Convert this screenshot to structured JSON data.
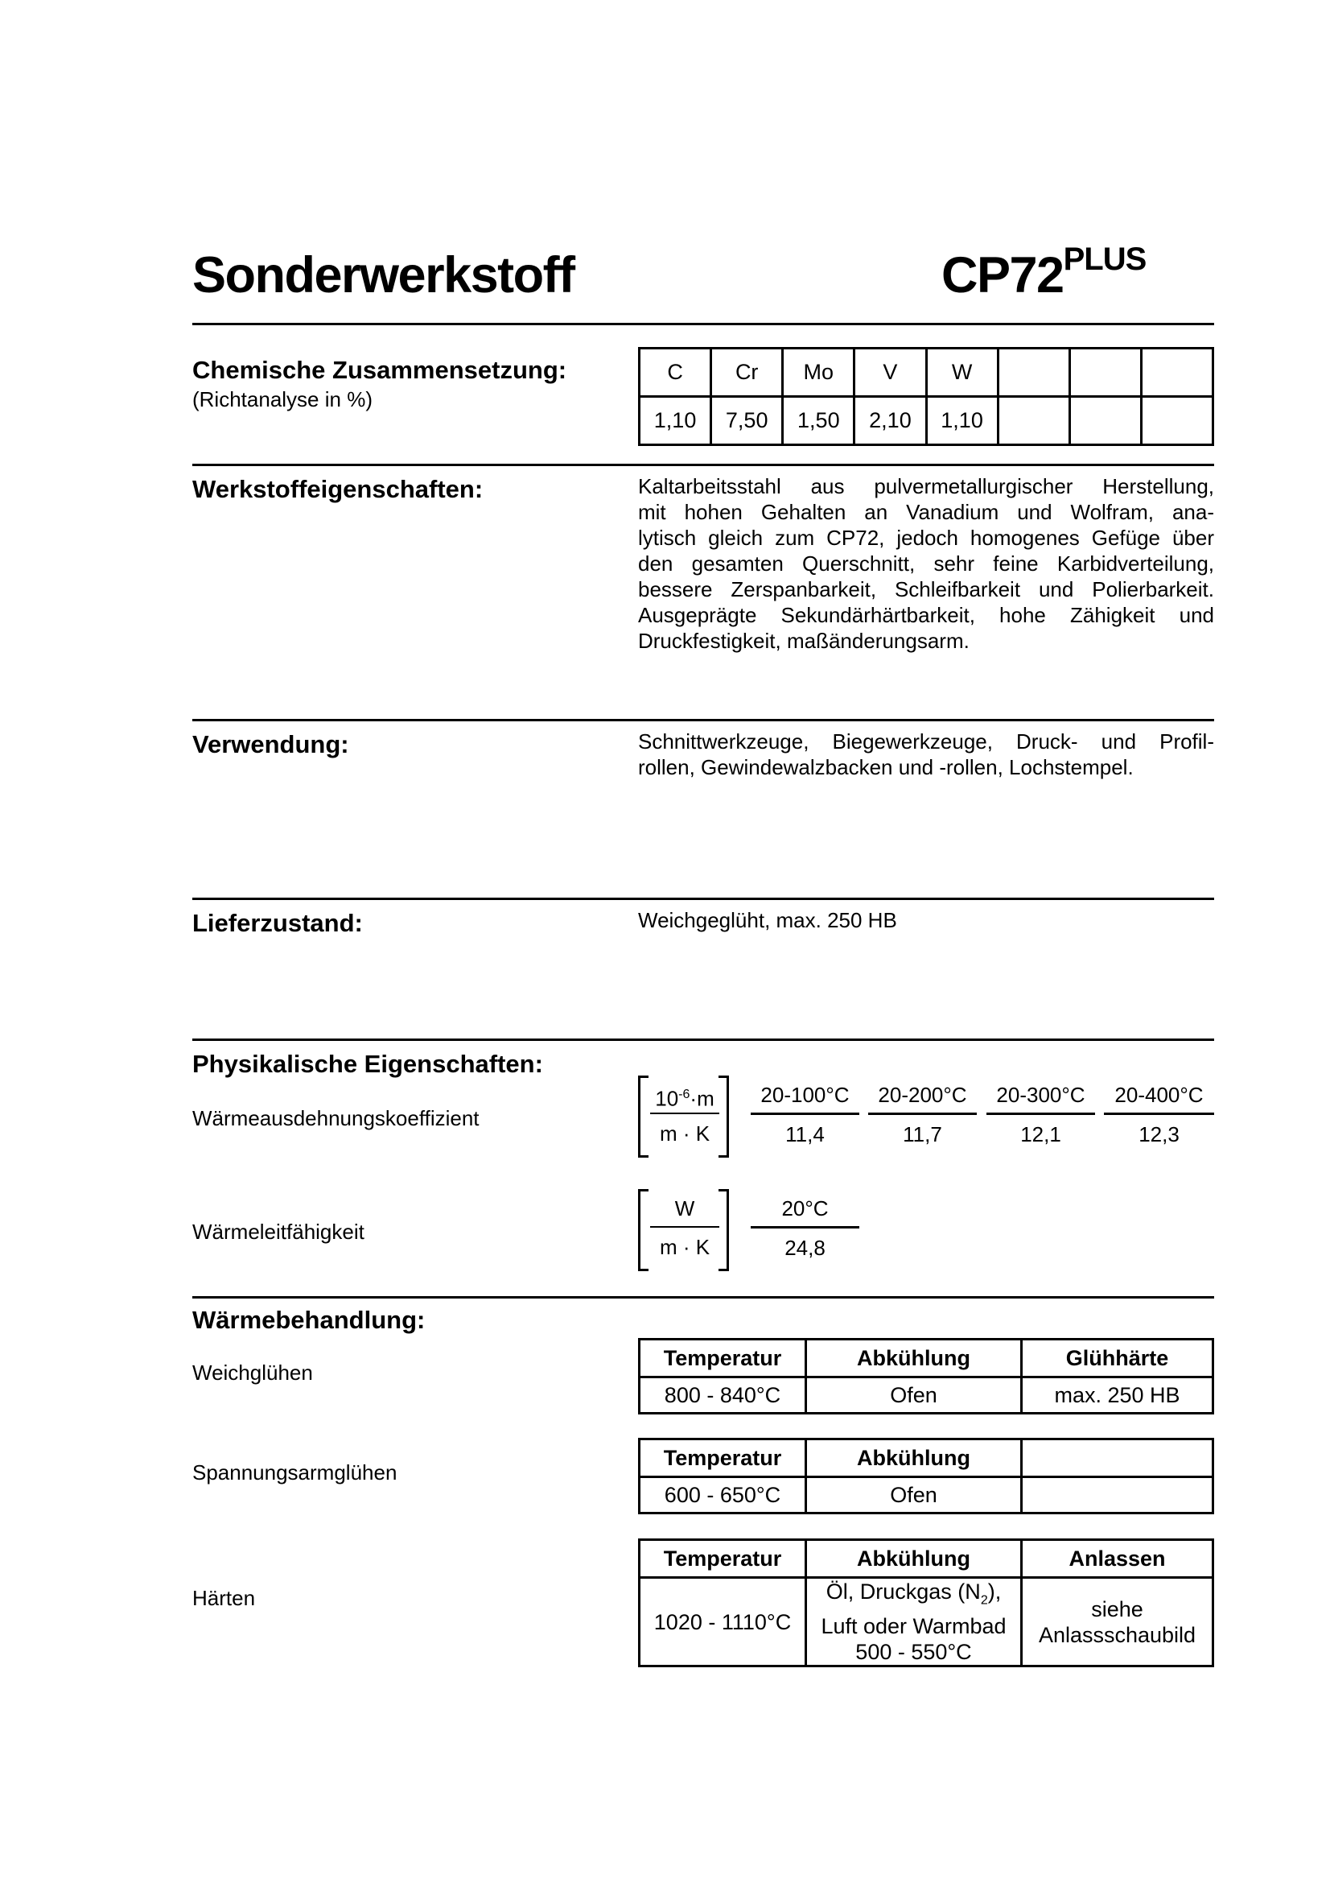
{
  "header": {
    "title": "Sonderwerkstoff",
    "product": "CP72",
    "product_sup": "PLUS"
  },
  "chemistry": {
    "heading": "Chemische Zusammensetzung:",
    "note": "(Richtanalyse in %)",
    "elements": [
      "C",
      "Cr",
      "Mo",
      "V",
      "W",
      "",
      "",
      ""
    ],
    "values": [
      "1,10",
      "7,50",
      "1,50",
      "2,10",
      "1,10",
      "",
      "",
      ""
    ]
  },
  "properties": {
    "heading": "Werkstoffeigenschaften:",
    "lines": [
      "Kaltarbeitsstahl aus pulvermetallurgischer Herstellung,",
      "mit hohen Gehalten an Vanadium und Wolfram, ana-",
      "lytisch gleich zum CP72, jedoch homogenes Gefüge über",
      "den gesamten Querschnitt, sehr feine Karbidverteilung,",
      "bessere Zerspanbarkeit, Schleifbarkeit und Polierbarkeit.",
      "Ausgeprägte Sekundärhärtbarkeit, hohe Zähigkeit und",
      "Druckfestigkeit, maßänderungsarm."
    ]
  },
  "usage": {
    "heading": "Verwendung:",
    "lines": [
      "Schnittwerkzeuge, Biegewerkzeuge, Druck- und Profil-",
      "rollen, Gewindewalzbacken und -rollen, Lochstempel."
    ]
  },
  "delivery": {
    "heading": "Lieferzustand:",
    "text": "Weichgeglüht, max. 250 HB"
  },
  "physical": {
    "heading": "Physikalische Eigenschaften:",
    "expansion": {
      "label": "Wärmeausdehnungskoeffizient",
      "unit_top_base": "10",
      "unit_top_exp": "-6",
      "unit_top_rest": "·m",
      "unit_bottom": "m · K",
      "ranges": [
        "20-100°C",
        "20-200°C",
        "20-300°C",
        "20-400°C"
      ],
      "values": [
        "11,4",
        "11,7",
        "12,1",
        "12,3"
      ]
    },
    "conductivity": {
      "label": "Wärmeleitfähigkeit",
      "unit_top": "W",
      "unit_bottom": "m · K",
      "range": "20°C",
      "value": "24,8"
    }
  },
  "heat": {
    "heading": "Wärmebehandlung:",
    "soft": {
      "label": "Weichglühen",
      "headers": [
        "Temperatur",
        "Abkühlung",
        "Glühhärte"
      ],
      "row": [
        "800 - 840°C",
        "Ofen",
        "max. 250 HB"
      ]
    },
    "stress": {
      "label": "Spannungsarmglühen",
      "headers": [
        "Temperatur",
        "Abkühlung",
        ""
      ],
      "row": [
        "600 - 650°C",
        "Ofen",
        ""
      ]
    },
    "harden": {
      "label": "Härten",
      "headers": [
        "Temperatur",
        "Abkühlung",
        "Anlassen"
      ],
      "temp": "1020 - 1110°C",
      "cool_1a": "Öl, Druckgas (N",
      "cool_1sub": "2",
      "cool_1b": "),",
      "cool_2": "Luft oder Warmbad",
      "cool_3": "500 - 550°C",
      "temper_1": "siehe",
      "temper_2": "Anlassschaubild"
    }
  }
}
